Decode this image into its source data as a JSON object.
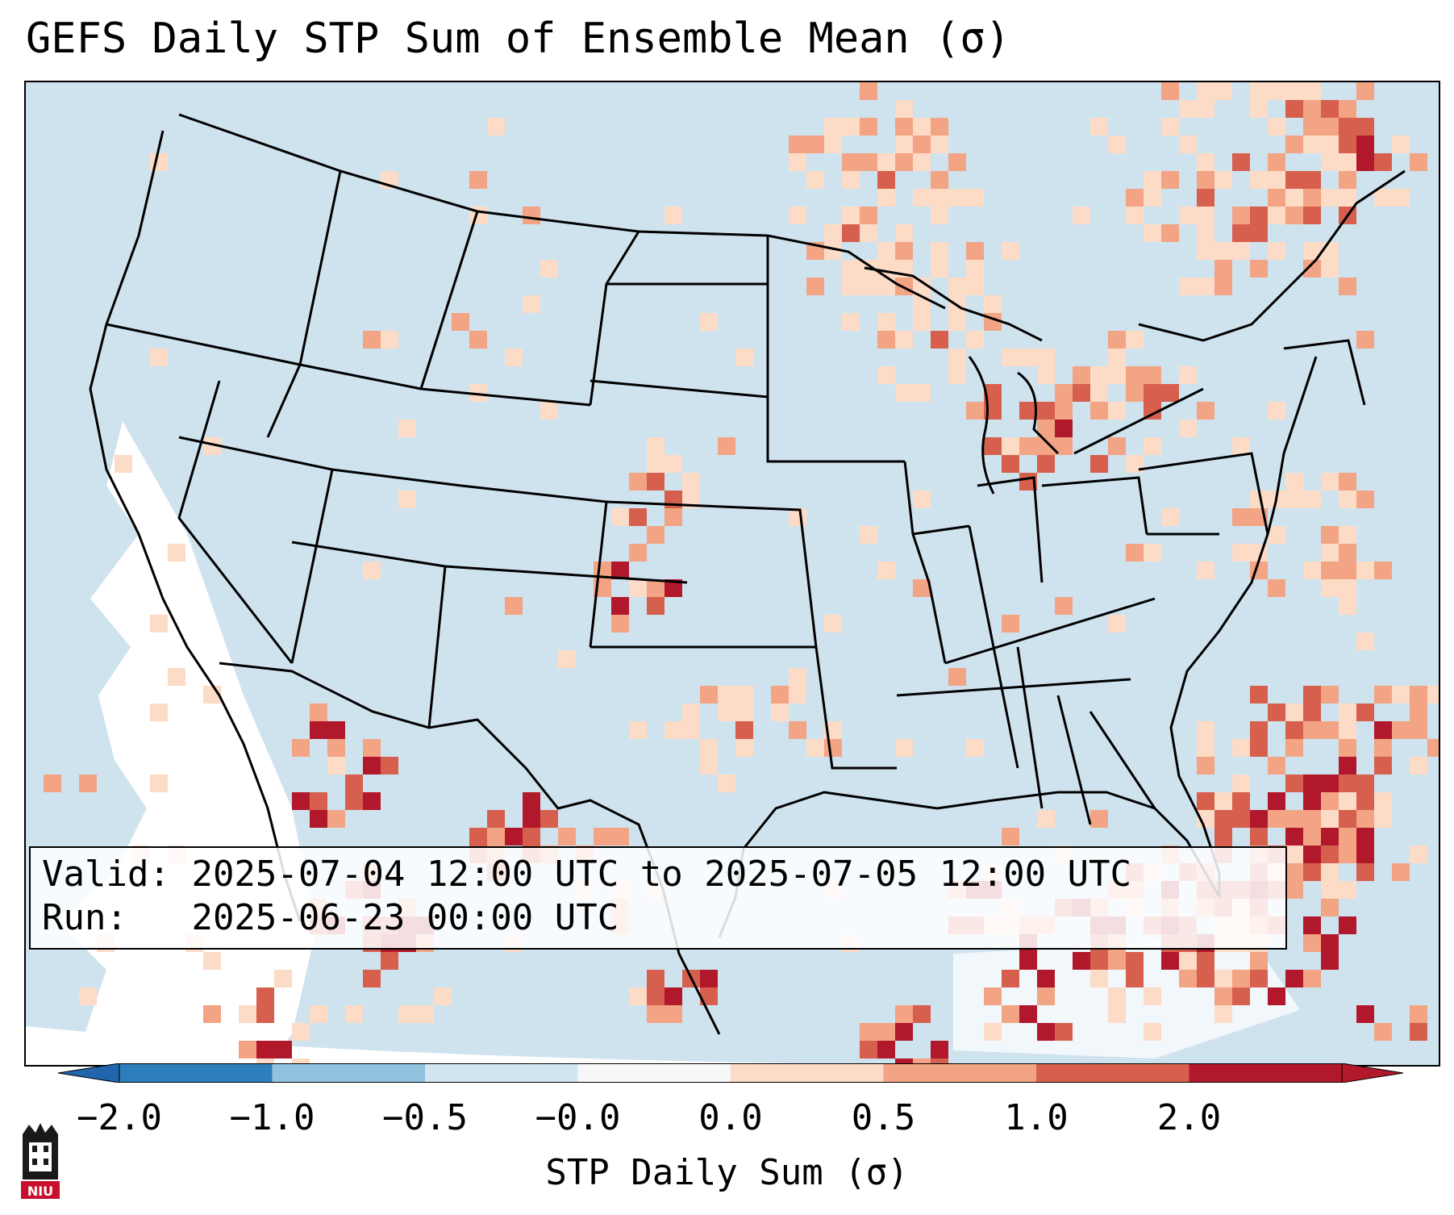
{
  "title": "GEFS Daily STP Sum of Ensemble Mean (σ)",
  "info": {
    "valid_label": "Valid:",
    "valid_value": "2025-07-04 12:00 UTC to 2025-07-05 12:00 UTC",
    "run_label": "Run:",
    "run_value": "2025-06-23 00:00 UTC"
  },
  "colorbar": {
    "label": "STP Daily Sum (σ)",
    "ticks": [
      "−2.0",
      "−1.0",
      "−0.5",
      "−0.0",
      "0.0",
      "0.5",
      "1.0",
      "2.0"
    ],
    "segment_colors": [
      "#2e7ebc",
      "#91c3de",
      "#d1e5f0",
      "#f7f7f7",
      "#fcdbc7",
      "#f2a484",
      "#d6604d",
      "#b2182b"
    ],
    "under_color": "#2166ac",
    "over_color": "#b2182b"
  },
  "colors": {
    "ocean_land_base": "#d1e5f0",
    "white_area": "#ffffff",
    "light_orange": "#fcdbc7",
    "orange": "#f2a484",
    "red": "#d6604d",
    "dark_red": "#b2182b",
    "borders": "#000000"
  },
  "logo": {
    "text": "NIU"
  }
}
